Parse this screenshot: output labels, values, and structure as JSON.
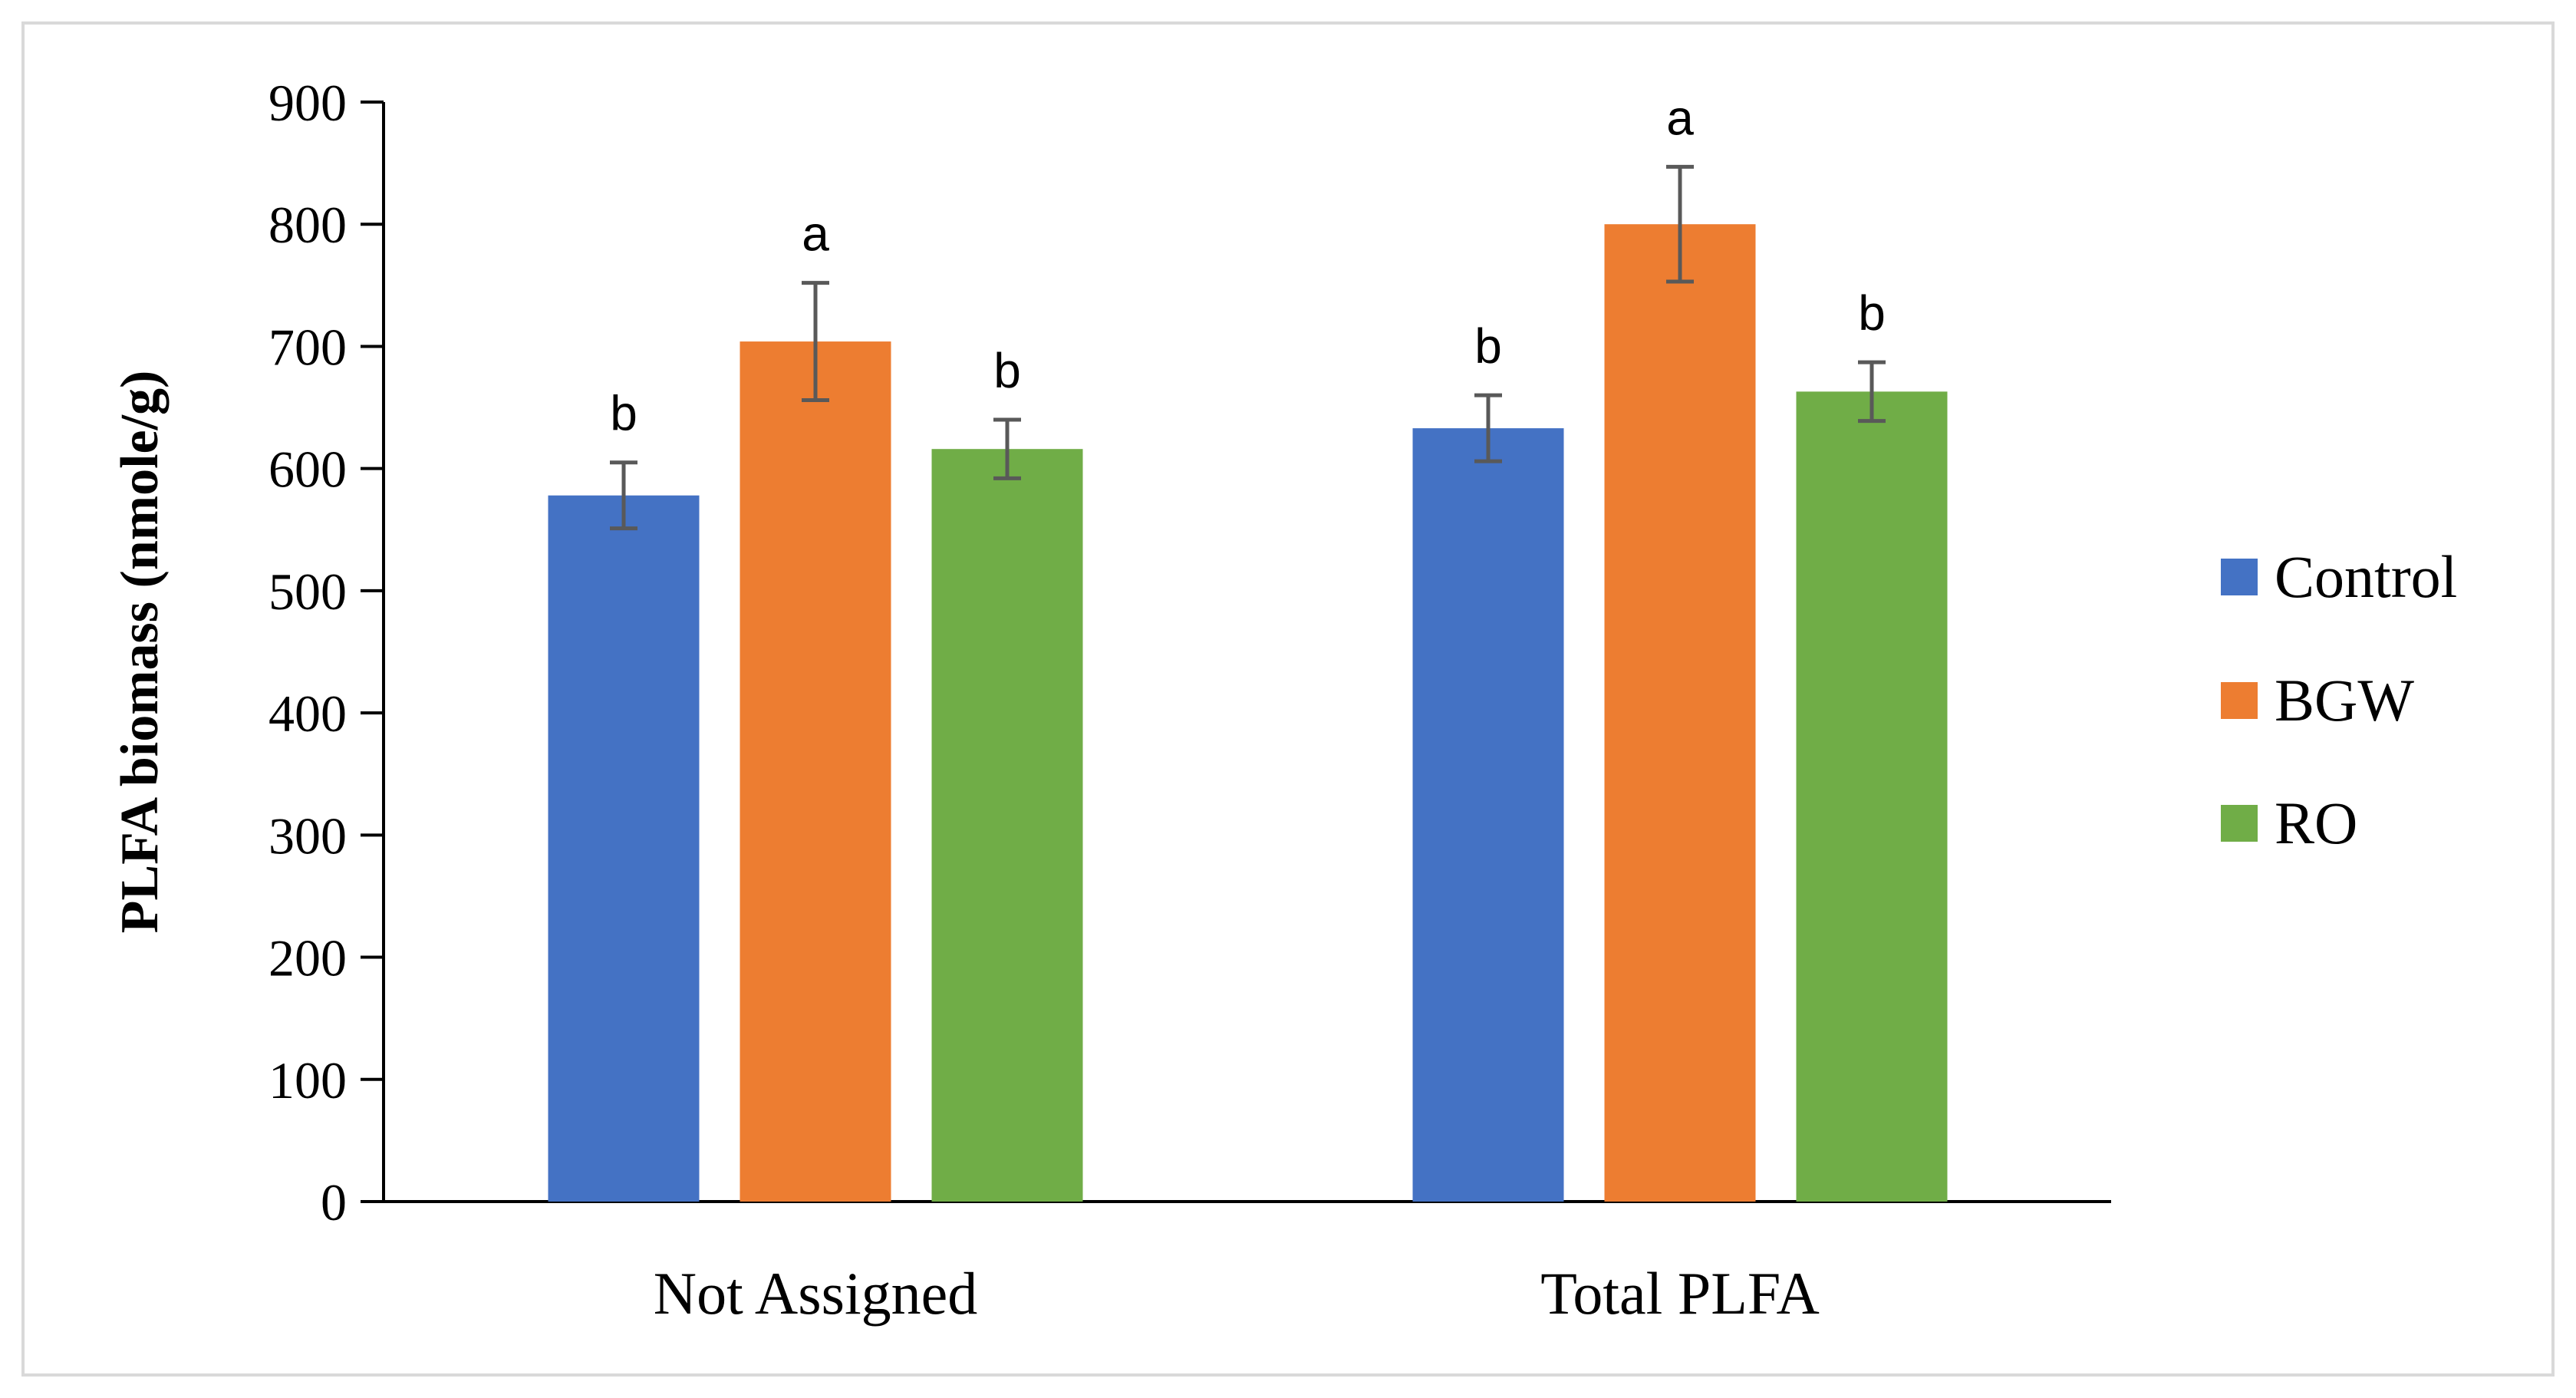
{
  "chart_data": {
    "type": "bar",
    "title": "",
    "xlabel": "",
    "ylabel": "PLFA biomass (nmole/g)",
    "ylim": [
      0,
      900
    ],
    "yticks": [
      0,
      100,
      200,
      300,
      400,
      500,
      600,
      700,
      800,
      900
    ],
    "categories": [
      "Not Assigned",
      "Total PLFA"
    ],
    "series": [
      {
        "name": "Control",
        "color": "#4472C4",
        "values": [
          578,
          633
        ],
        "errors": [
          27,
          27
        ],
        "letters": [
          "b",
          "b"
        ]
      },
      {
        "name": "BGW",
        "color": "#ED7D31",
        "values": [
          704,
          800
        ],
        "errors": [
          48,
          47
        ],
        "letters": [
          "a",
          "a"
        ]
      },
      {
        "name": "RO",
        "color": "#70AD47",
        "values": [
          616,
          663
        ],
        "errors": [
          24,
          24
        ],
        "letters": [
          "b",
          "b"
        ]
      }
    ],
    "grid": false,
    "legend_position": "right"
  }
}
